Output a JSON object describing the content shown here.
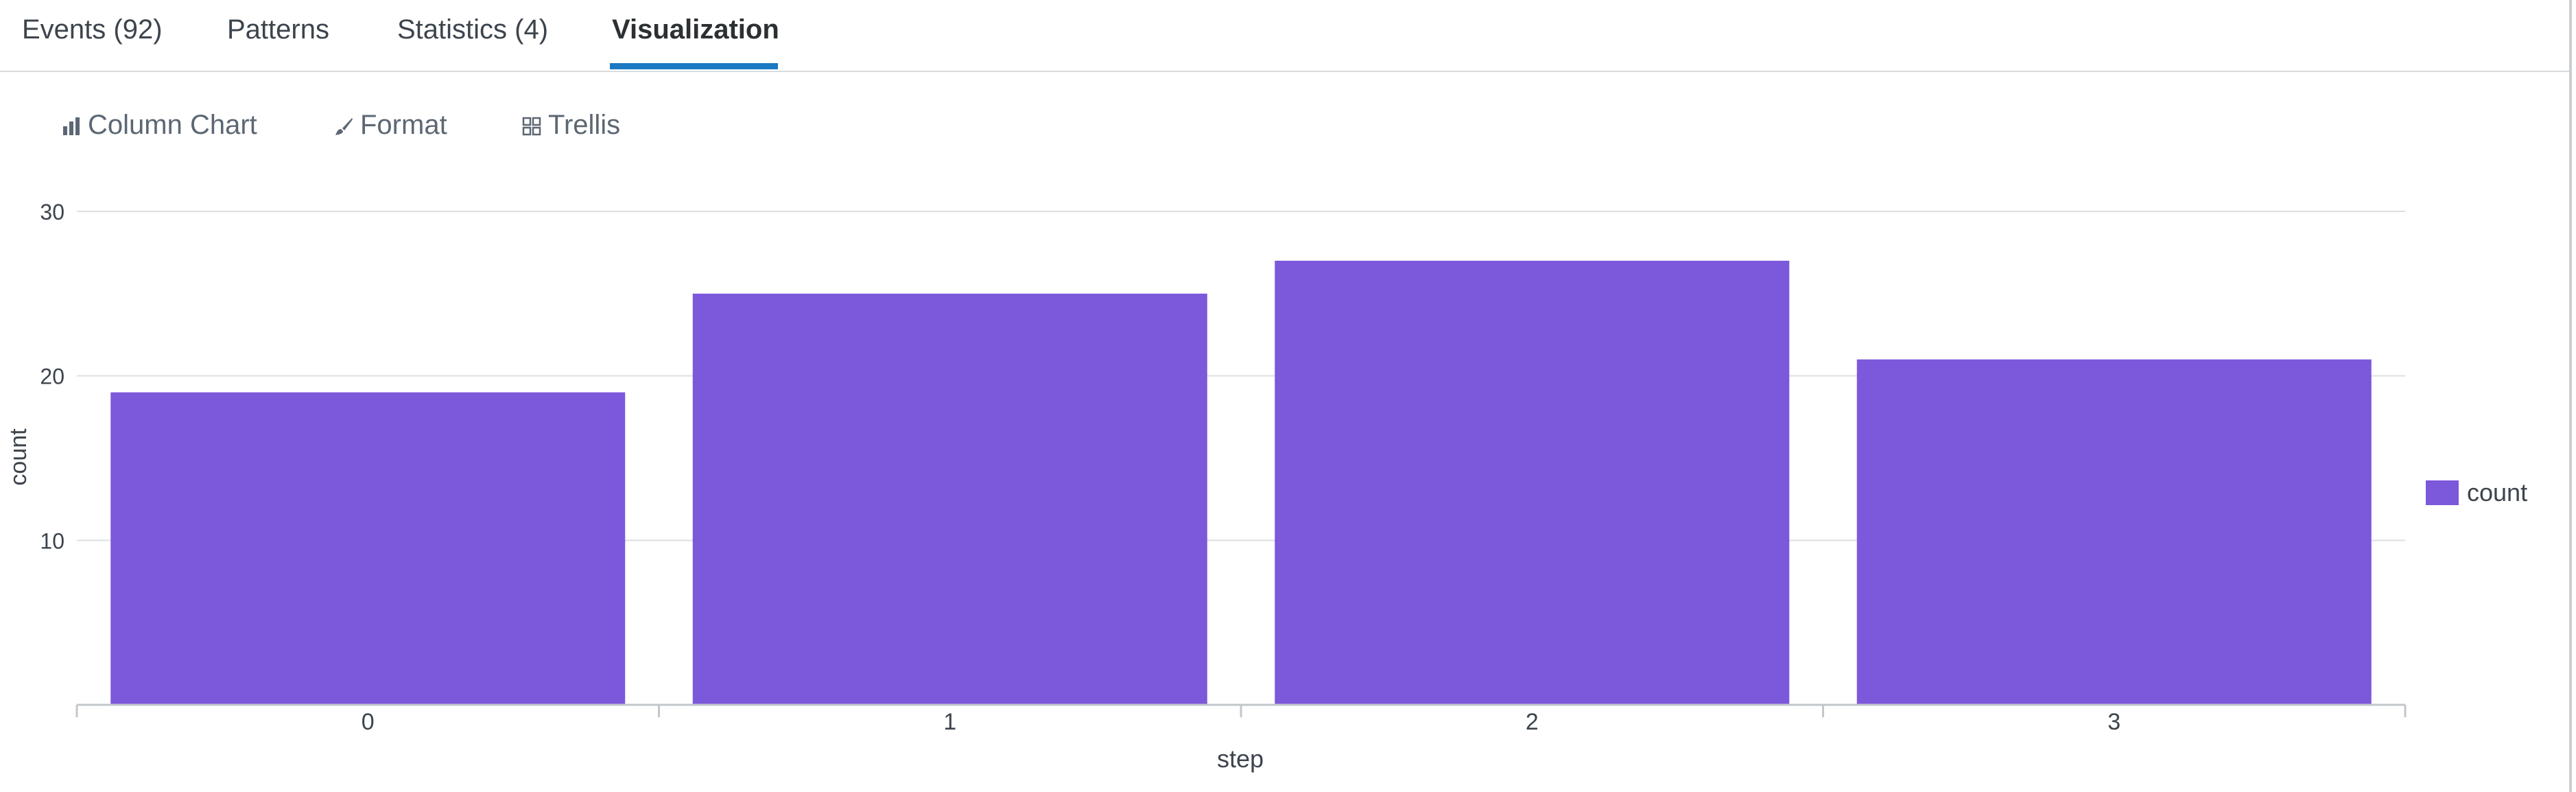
{
  "tabs": [
    {
      "label": "Events (92)",
      "active": false
    },
    {
      "label": "Patterns",
      "active": false
    },
    {
      "label": "Statistics (4)",
      "active": false
    },
    {
      "label": "Visualization",
      "active": true
    }
  ],
  "toolbar": {
    "chart_type": {
      "label": "Column Chart",
      "icon": "column-chart-icon"
    },
    "format": {
      "label": "Format",
      "icon": "paintbrush-icon"
    },
    "trellis": {
      "label": "Trellis",
      "icon": "grid-icon"
    }
  },
  "colors": {
    "accent": "#1a79c2",
    "series": "#7c58db",
    "grid": "#dcdfe2",
    "axis": "#c3c7cb",
    "text": "#3c444d"
  },
  "chart_data": {
    "type": "bar",
    "categories": [
      "0",
      "1",
      "2",
      "3"
    ],
    "series": [
      {
        "name": "count",
        "values": [
          19,
          25,
          27,
          21
        ]
      }
    ],
    "xlabel": "step",
    "ylabel": "count",
    "ylim": [
      0,
      30
    ],
    "yticks": [
      "10",
      "20",
      "30"
    ],
    "grid": true,
    "legend": "right"
  }
}
